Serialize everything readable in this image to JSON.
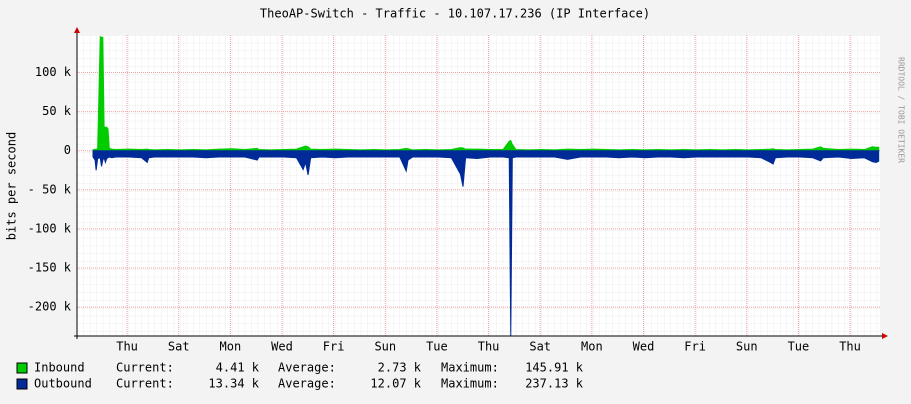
{
  "chart_data": {
    "type": "area",
    "title": "TheoAP-Switch - Traffic - 10.107.17.236 (IP Interface)",
    "y_label": "bits per second",
    "watermark": "RRDTOOL / TOBI OETIKER",
    "stat_labels": [
      "Current:",
      "Average:",
      "Maximum:"
    ],
    "xlim": [
      0,
      31.1
    ],
    "xticks": [
      {
        "value": 1.94,
        "label": "Thu"
      },
      {
        "value": 3.94,
        "label": "Sat"
      },
      {
        "value": 5.94,
        "label": "Mon"
      },
      {
        "value": 7.94,
        "label": "Wed"
      },
      {
        "value": 9.94,
        "label": "Fri"
      },
      {
        "value": 11.94,
        "label": "Sun"
      },
      {
        "value": 13.94,
        "label": "Tue"
      },
      {
        "value": 15.94,
        "label": "Thu"
      },
      {
        "value": 17.94,
        "label": "Sat"
      },
      {
        "value": 19.94,
        "label": "Mon"
      },
      {
        "value": 21.94,
        "label": "Wed"
      },
      {
        "value": 23.94,
        "label": "Fri"
      },
      {
        "value": 25.94,
        "label": "Sun"
      },
      {
        "value": 27.94,
        "label": "Tue"
      },
      {
        "value": 29.94,
        "label": "Thu"
      }
    ],
    "ylim": [
      -237000,
      148000
    ],
    "yticks": [
      {
        "value": 100000,
        "label": "100 k"
      },
      {
        "value": 50000,
        "label": "50 k"
      },
      0,
      {
        "value": -50000,
        "label": "- 50 k"
      },
      {
        "value": -100000,
        "label": "-100 k"
      },
      {
        "value": -150000,
        "label": "-150 k"
      },
      {
        "value": -200000,
        "label": "-200 k"
      }
    ],
    "grid": true,
    "x": [
      0.62,
      0.7,
      0.74,
      0.8,
      0.9,
      0.95,
      1.0,
      1.05,
      1.1,
      1.15,
      1.2,
      1.25,
      1.35,
      1.5,
      2.0,
      2.5,
      2.72,
      2.78,
      3.0,
      3.5,
      4.0,
      4.5,
      5.0,
      5.5,
      6.0,
      6.5,
      6.98,
      7.05,
      7.5,
      8.0,
      8.5,
      8.76,
      8.85,
      8.95,
      9.05,
      9.5,
      10.0,
      10.5,
      11.0,
      11.5,
      12.0,
      12.5,
      12.75,
      12.82,
      13.0,
      13.5,
      14.0,
      14.5,
      14.85,
      14.95,
      15.05,
      15.5,
      16.0,
      16.5,
      16.74,
      16.8,
      16.86,
      17.0,
      17.5,
      18.0,
      18.5,
      19.0,
      19.5,
      20.0,
      20.5,
      21.0,
      21.5,
      22.0,
      22.5,
      23.0,
      23.5,
      24.0,
      24.5,
      25.0,
      25.5,
      26.0,
      26.5,
      26.86,
      26.96,
      27.05,
      27.5,
      28.0,
      28.5,
      28.8,
      28.9,
      29.5,
      30.0,
      30.5,
      30.8,
      30.95,
      31.05
    ],
    "series": [
      {
        "name": "Inbound",
        "color": "#00cc00",
        "current": "4.41 k",
        "average": "2.73 k",
        "maximum": "145.91 k",
        "values": [
          1000,
          2000,
          1500,
          3000,
          145910,
          145000,
          145000,
          30000,
          30000,
          30000,
          28000,
          3000,
          2000,
          1500,
          2000,
          1500,
          2000,
          1500,
          1000,
          1500,
          1000,
          1500,
          1000,
          2000,
          2500,
          1500,
          3000,
          1500,
          1000,
          1500,
          2000,
          5000,
          6000,
          5000,
          2000,
          1500,
          2000,
          1500,
          1000,
          1500,
          1000,
          1500,
          3000,
          2500,
          1000,
          1500,
          1000,
          1500,
          4000,
          3500,
          2000,
          2000,
          1500,
          1500,
          12000,
          13000,
          8000,
          1500,
          1000,
          1500,
          1000,
          2000,
          1500,
          2000,
          1500,
          1000,
          1500,
          1000,
          1500,
          1000,
          1500,
          1000,
          1500,
          1000,
          1500,
          1000,
          1500,
          2000,
          2500,
          1500,
          1000,
          1500,
          2000,
          5000,
          3000,
          1500,
          2000,
          1500,
          5000,
          4500,
          4410
        ]
      },
      {
        "name": "Outbound",
        "color": "#002a97",
        "current": "13.34 k",
        "average": "12.07 k",
        "maximum": "237.13 k",
        "values": [
          -8000,
          -12000,
          -25000,
          -10000,
          -9000,
          -20000,
          -12000,
          -9000,
          -15000,
          -10000,
          -9000,
          -8000,
          -9000,
          -8000,
          -8000,
          -9000,
          -15000,
          -9000,
          -8000,
          -8000,
          -8000,
          -8000,
          -9000,
          -8000,
          -8000,
          -8000,
          -12000,
          -8000,
          -8000,
          -8000,
          -9000,
          -24000,
          -15000,
          -31000,
          -9000,
          -8000,
          -9000,
          -8000,
          -8000,
          -8000,
          -8000,
          -8000,
          -26000,
          -12000,
          -8000,
          -8000,
          -8000,
          -9000,
          -30000,
          -46000,
          -9000,
          -10000,
          -8000,
          -8000,
          -9000,
          -237130,
          -9000,
          -8000,
          -8000,
          -8000,
          -8000,
          -11000,
          -8000,
          -8000,
          -8000,
          -9000,
          -8000,
          -9000,
          -8000,
          -8000,
          -9000,
          -8000,
          -8000,
          -8000,
          -8000,
          -8000,
          -9000,
          -15000,
          -17000,
          -9000,
          -8000,
          -8000,
          -9000,
          -13000,
          -9000,
          -8000,
          -10000,
          -9000,
          -14000,
          -15000,
          -13340
        ]
      }
    ]
  }
}
